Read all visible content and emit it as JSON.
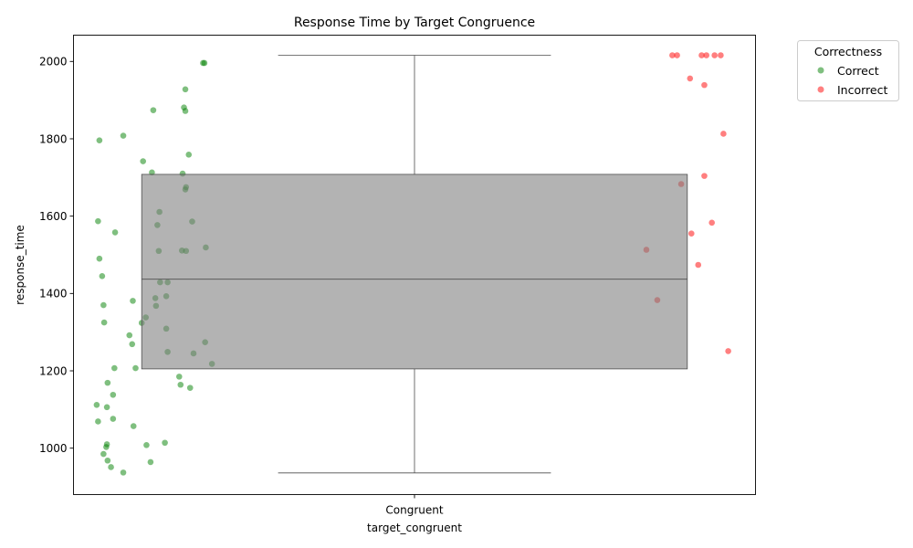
{
  "chart_data": {
    "type": "box-strip",
    "title": "Response Time by Target Congruence",
    "xlabel": "target_congruent",
    "ylabel": "response_time",
    "categories": [
      "Congruent"
    ],
    "ylim": [
      880,
      2068
    ],
    "yticks": [
      1000,
      1200,
      1400,
      1600,
      1800,
      2000
    ],
    "grid": false,
    "legend": {
      "title": "Correctness",
      "placement": "outside-top-right",
      "entries": [
        "Correct",
        "Incorrect"
      ]
    },
    "colors": {
      "Correct": "#008000",
      "Incorrect": "#ff0000",
      "box": "#808080",
      "line": "#4d4d4d"
    },
    "box": {
      "category": "Congruent",
      "whisker_low": 936,
      "q1": 1205,
      "median": 1437,
      "q3": 1708,
      "whisker_high": 2016
    },
    "series": [
      {
        "name": "Correct",
        "points": [
          {
            "j": -0.31,
            "y": 1996
          },
          {
            "j": -0.308,
            "y": 1996
          },
          {
            "j": -0.336,
            "y": 1928
          },
          {
            "j": -0.338,
            "y": 1881
          },
          {
            "j": -0.383,
            "y": 1874
          },
          {
            "j": -0.336,
            "y": 1872
          },
          {
            "j": -0.427,
            "y": 1808
          },
          {
            "j": -0.462,
            "y": 1796
          },
          {
            "j": -0.331,
            "y": 1759
          },
          {
            "j": -0.398,
            "y": 1742
          },
          {
            "j": -0.385,
            "y": 1713
          },
          {
            "j": -0.34,
            "y": 1710
          },
          {
            "j": -0.335,
            "y": 1675
          },
          {
            "j": -0.336,
            "y": 1669
          },
          {
            "j": -0.374,
            "y": 1611
          },
          {
            "j": -0.464,
            "y": 1587
          },
          {
            "j": -0.326,
            "y": 1586
          },
          {
            "j": -0.377,
            "y": 1577
          },
          {
            "j": -0.439,
            "y": 1558
          },
          {
            "j": -0.306,
            "y": 1519
          },
          {
            "j": -0.341,
            "y": 1511
          },
          {
            "j": -0.375,
            "y": 1510
          },
          {
            "j": -0.335,
            "y": 1510
          },
          {
            "j": -0.462,
            "y": 1490
          },
          {
            "j": -0.458,
            "y": 1445
          },
          {
            "j": -0.373,
            "y": 1429
          },
          {
            "j": -0.362,
            "y": 1429
          },
          {
            "j": -0.364,
            "y": 1393
          },
          {
            "j": -0.38,
            "y": 1388
          },
          {
            "j": -0.413,
            "y": 1381
          },
          {
            "j": -0.456,
            "y": 1370
          },
          {
            "j": -0.379,
            "y": 1368
          },
          {
            "j": -0.394,
            "y": 1338
          },
          {
            "j": -0.455,
            "y": 1325
          },
          {
            "j": -0.4,
            "y": 1324
          },
          {
            "j": -0.364,
            "y": 1309
          },
          {
            "j": -0.418,
            "y": 1292
          },
          {
            "j": -0.307,
            "y": 1274
          },
          {
            "j": -0.414,
            "y": 1269
          },
          {
            "j": -0.362,
            "y": 1249
          },
          {
            "j": -0.324,
            "y": 1245
          },
          {
            "j": -0.297,
            "y": 1218
          },
          {
            "j": -0.44,
            "y": 1207
          },
          {
            "j": -0.409,
            "y": 1207
          },
          {
            "j": -0.345,
            "y": 1185
          },
          {
            "j": -0.45,
            "y": 1169
          },
          {
            "j": -0.343,
            "y": 1164
          },
          {
            "j": -0.329,
            "y": 1156
          },
          {
            "j": -0.442,
            "y": 1138
          },
          {
            "j": -0.466,
            "y": 1112
          },
          {
            "j": -0.451,
            "y": 1106
          },
          {
            "j": -0.442,
            "y": 1076
          },
          {
            "j": -0.464,
            "y": 1069
          },
          {
            "j": -0.412,
            "y": 1057
          },
          {
            "j": -0.366,
            "y": 1014
          },
          {
            "j": -0.451,
            "y": 1010
          },
          {
            "j": -0.393,
            "y": 1008
          },
          {
            "j": -0.452,
            "y": 1003
          },
          {
            "j": -0.456,
            "y": 985
          },
          {
            "j": -0.45,
            "y": 968
          },
          {
            "j": -0.387,
            "y": 964
          },
          {
            "j": -0.445,
            "y": 951
          },
          {
            "j": -0.427,
            "y": 937
          }
        ]
      },
      {
        "name": "Incorrect",
        "points": [
          {
            "j": 0.378,
            "y": 2016
          },
          {
            "j": 0.385,
            "y": 2016
          },
          {
            "j": 0.421,
            "y": 2016
          },
          {
            "j": 0.428,
            "y": 2016
          },
          {
            "j": 0.44,
            "y": 2016
          },
          {
            "j": 0.449,
            "y": 2016
          },
          {
            "j": 0.404,
            "y": 1956
          },
          {
            "j": 0.425,
            "y": 1939
          },
          {
            "j": 0.453,
            "y": 1813
          },
          {
            "j": 0.425,
            "y": 1704
          },
          {
            "j": 0.391,
            "y": 1683
          },
          {
            "j": 0.436,
            "y": 1583
          },
          {
            "j": 0.406,
            "y": 1555
          },
          {
            "j": 0.34,
            "y": 1513
          },
          {
            "j": 0.416,
            "y": 1474
          },
          {
            "j": 0.356,
            "y": 1383
          },
          {
            "j": 0.46,
            "y": 1251
          }
        ]
      }
    ]
  }
}
